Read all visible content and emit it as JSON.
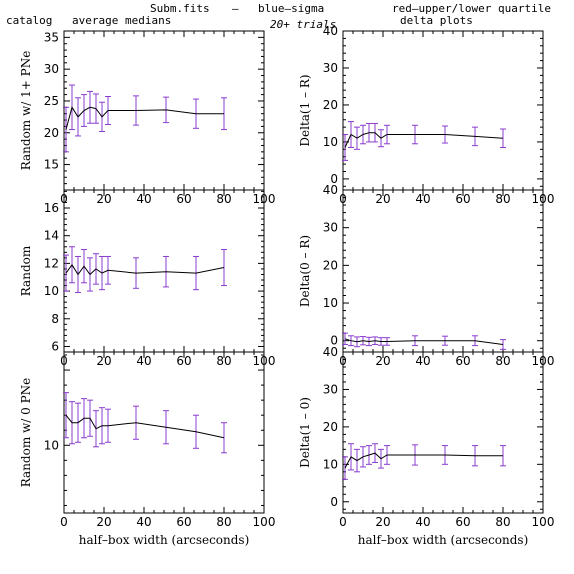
{
  "header": {
    "title_left": "Subm.fits",
    "dash": "—",
    "sigma_label": "blue–sigma",
    "quartile_label": "red–upper/lower quartile",
    "trials": "20+ trials",
    "col_left_a": "catalog",
    "col_left_b": "average medians",
    "col_right": "delta plots"
  },
  "colors": {
    "sigma": "#4a4aff",
    "quartile": "#ff3b3b",
    "axis": "#000000",
    "line": "#000000",
    "errorbar": "#8a3ccf"
  },
  "chart_data": [
    {
      "type": "line",
      "ylabel": "Random w/ 1+ PNe",
      "xlim": [
        0,
        100
      ],
      "ylim": [
        11,
        36
      ],
      "yticks": [
        15,
        20,
        25,
        30,
        35
      ],
      "xticks": [
        0,
        20,
        40,
        60,
        80,
        100
      ],
      "x": [
        1,
        4,
        7,
        10,
        13,
        16,
        19,
        22,
        36,
        51,
        66,
        80
      ],
      "y": [
        20.5,
        24.0,
        22.5,
        23.5,
        24.0,
        23.8,
        22.5,
        23.5,
        23.5,
        23.6,
        23.0,
        23.0
      ],
      "err": [
        3.5,
        3.5,
        3.0,
        2.5,
        2.5,
        2.3,
        2.3,
        2.2,
        2.3,
        2.0,
        2.3,
        2.5
      ],
      "xlabel": ""
    },
    {
      "type": "line",
      "ylabel": "Delta(1 – R)",
      "xlim": [
        0,
        100
      ],
      "ylim": [
        -3,
        40
      ],
      "yticks": [
        0,
        10,
        20,
        30,
        40
      ],
      "xticks": [
        0,
        20,
        40,
        60,
        80,
        100
      ],
      "x": [
        1,
        4,
        7,
        10,
        13,
        16,
        19,
        22,
        36,
        51,
        66,
        80
      ],
      "y": [
        8.5,
        12.0,
        11.0,
        12.0,
        12.5,
        12.5,
        11.0,
        12.0,
        12.0,
        12.0,
        11.5,
        11.0
      ],
      "err": [
        3.5,
        3.5,
        3.0,
        2.5,
        2.5,
        2.5,
        2.3,
        2.5,
        2.5,
        2.3,
        2.5,
        2.5
      ],
      "xlabel": ""
    },
    {
      "type": "line",
      "ylabel": "Random",
      "xlim": [
        0,
        100
      ],
      "ylim": [
        5.6,
        17.3
      ],
      "yticks": [
        6,
        8,
        10,
        12,
        14,
        16
      ],
      "xticks": [
        0,
        20,
        40,
        60,
        80,
        100
      ],
      "x": [
        1,
        4,
        7,
        10,
        13,
        16,
        19,
        22,
        36,
        51,
        66,
        80
      ],
      "y": [
        11.3,
        11.9,
        11.2,
        11.8,
        11.2,
        11.6,
        11.3,
        11.5,
        11.3,
        11.4,
        11.3,
        11.7
      ],
      "err": [
        1.3,
        1.3,
        1.3,
        1.2,
        1.2,
        1.1,
        1.2,
        1.0,
        1.1,
        1.1,
        1.2,
        1.3
      ],
      "xlabel": ""
    },
    {
      "type": "line",
      "ylabel": "Delta(0 – R)",
      "xlim": [
        0,
        100
      ],
      "ylim": [
        -3,
        40
      ],
      "yticks": [
        0,
        10,
        20,
        30,
        40
      ],
      "xticks": [
        0,
        20,
        40,
        60,
        80,
        100
      ],
      "x": [
        1,
        4,
        7,
        10,
        13,
        16,
        19,
        22,
        36,
        51,
        66,
        80
      ],
      "y": [
        0.5,
        0.0,
        -0.3,
        0.0,
        -0.2,
        0.0,
        -0.2,
        -0.2,
        0.0,
        0.0,
        0.0,
        -1.0
      ],
      "err": [
        1.5,
        1.3,
        1.3,
        1.1,
        1.1,
        1.0,
        1.0,
        1.0,
        1.3,
        1.2,
        1.3,
        1.3
      ],
      "xlabel": ""
    },
    {
      "type": "line",
      "ylabel": "Random w/ 0 PNe",
      "xlim": [
        0,
        100
      ],
      "ylim": [
        5.5,
        16.2
      ],
      "yticks": [
        10
      ],
      "xticks": [
        0,
        20,
        40,
        60,
        80,
        100
      ],
      "x": [
        1,
        4,
        7,
        10,
        13,
        16,
        19,
        22,
        36,
        51,
        66,
        80
      ],
      "y": [
        12.0,
        11.5,
        11.5,
        11.8,
        11.8,
        11.1,
        11.3,
        11.3,
        11.5,
        11.2,
        10.9,
        10.5
      ],
      "err": [
        1.5,
        1.4,
        1.3,
        1.3,
        1.2,
        1.2,
        1.2,
        1.1,
        1.1,
        1.1,
        1.1,
        1.0
      ],
      "xlabel": "half–box width (arcseconds)"
    },
    {
      "type": "line",
      "ylabel": "Delta(1 – 0)",
      "xlim": [
        0,
        100
      ],
      "ylim": [
        -3,
        40
      ],
      "yticks": [
        0,
        10,
        20,
        30,
        40
      ],
      "xticks": [
        0,
        20,
        40,
        60,
        80,
        100
      ],
      "x": [
        1,
        4,
        7,
        10,
        13,
        16,
        19,
        22,
        36,
        51,
        66,
        80
      ],
      "y": [
        9.0,
        12.0,
        11.0,
        12.0,
        12.5,
        13.0,
        11.5,
        12.5,
        12.5,
        12.5,
        12.3,
        12.3
      ],
      "err": [
        3.0,
        3.5,
        3.0,
        2.7,
        2.5,
        2.5,
        2.5,
        2.5,
        2.7,
        2.5,
        2.7,
        2.7
      ],
      "xlabel": "half–box width (arcseconds)"
    }
  ]
}
